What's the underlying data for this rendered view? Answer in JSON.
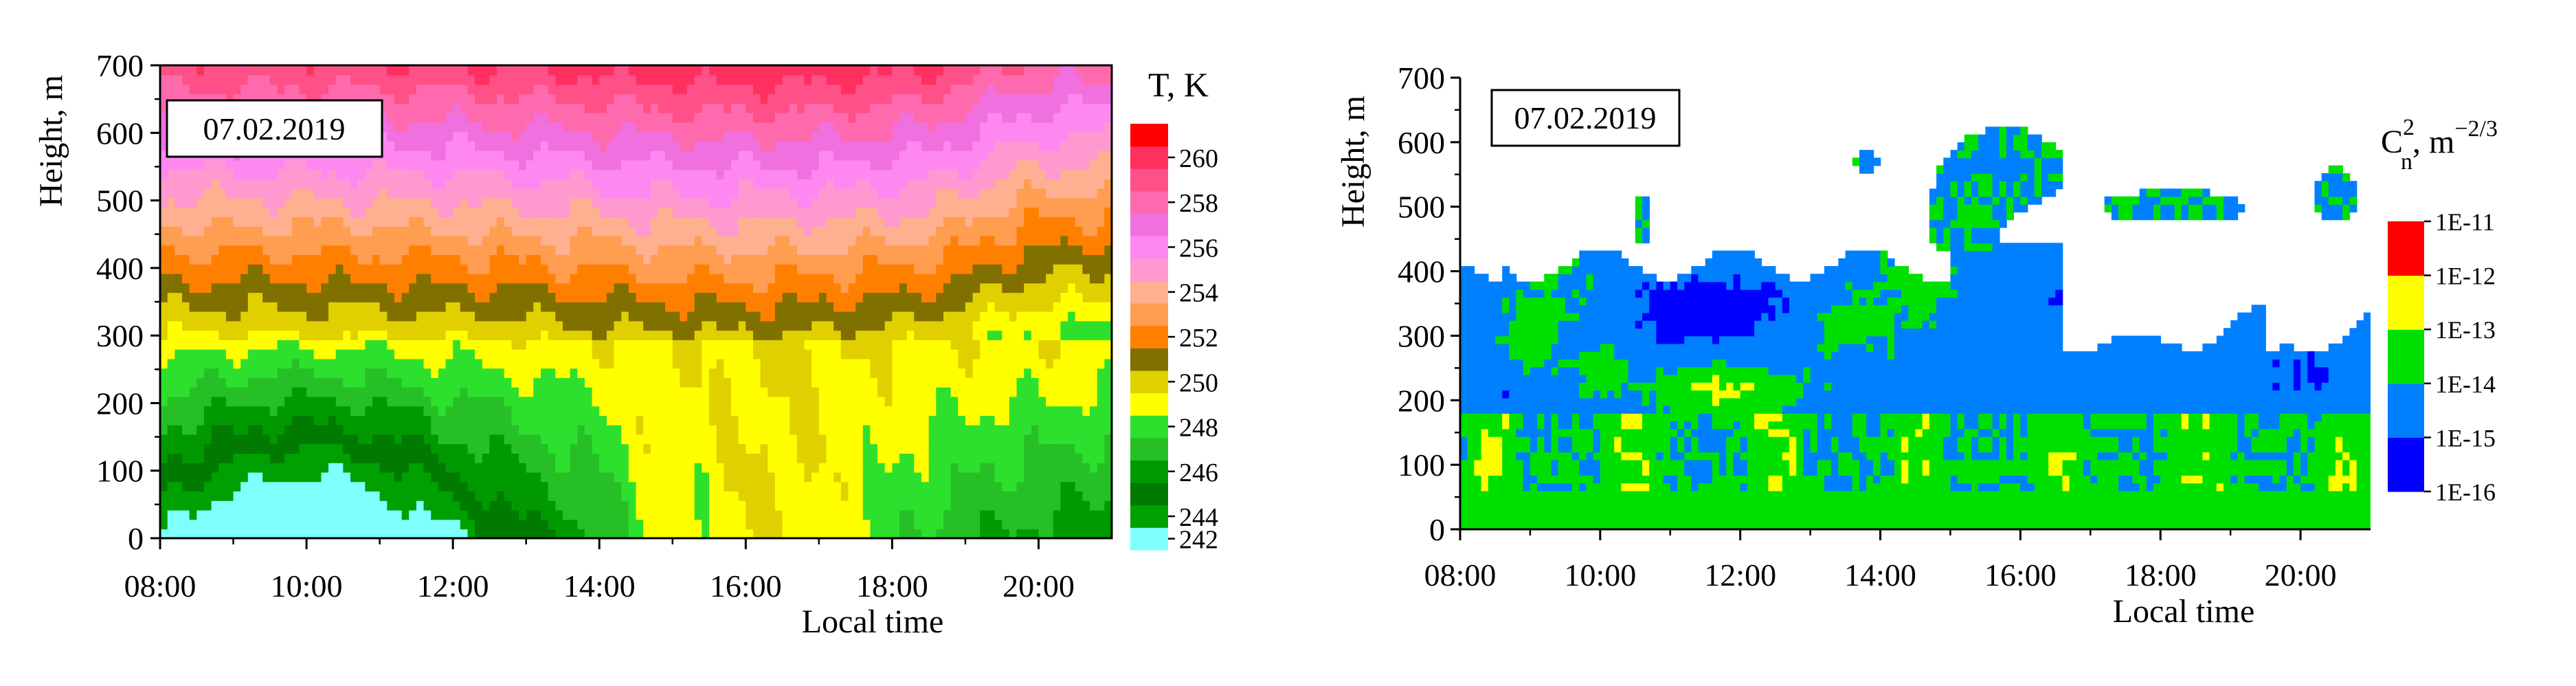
{
  "chart_data": [
    {
      "type": "heatmap",
      "date_label": "07.02.2019",
      "xlabel": "Local time",
      "ylabel": "Height, m",
      "colorbar_title": "T, K",
      "x_ticks": [
        "08:00",
        "10:00",
        "12:00",
        "14:00",
        "16:00",
        "18:00",
        "20:00"
      ],
      "x_tick_hours": [
        8,
        10,
        12,
        14,
        16,
        18,
        20
      ],
      "xlim_hours": [
        8,
        21
      ],
      "y_ticks": [
        0,
        100,
        200,
        300,
        400,
        500,
        600,
        700
      ],
      "ylim": [
        0,
        700
      ],
      "levels": [
        242,
        244,
        245,
        246,
        247,
        248,
        249,
        250,
        251,
        252,
        253,
        254,
        255,
        256,
        257,
        258,
        259,
        260,
        261
      ],
      "level_colors": [
        "#80FFFF",
        "#00A000",
        "#007A00",
        "#009A00",
        "#26C026",
        "#2EE02E",
        "#FFFF00",
        "#E0D000",
        "#807000",
        "#FF8000",
        "#FF9D50",
        "#FFB090",
        "#FF99D0",
        "#FF88F0",
        "#F070E0",
        "#FF6AAE",
        "#FF5088",
        "#FF3060",
        "#FF0000"
      ],
      "colorbar_labels": [
        "242",
        "244",
        "246",
        "248",
        "250",
        "252",
        "254",
        "256",
        "258",
        "260"
      ]
    },
    {
      "type": "heatmap",
      "date_label": "07.02.2019",
      "xlabel": "Local time",
      "ylabel": "Height, m",
      "colorbar_title_base": "C",
      "colorbar_title_sub": "n",
      "colorbar_title_sup": "2",
      "colorbar_title_rest": ", m",
      "colorbar_title_rest_sup": "−2/3",
      "x_ticks": [
        "08:00",
        "10:00",
        "12:00",
        "14:00",
        "16:00",
        "18:00",
        "20:00"
      ],
      "x_tick_hours": [
        8,
        10,
        12,
        14,
        16,
        18,
        20
      ],
      "xlim_hours": [
        8,
        21
      ],
      "y_ticks": [
        0,
        100,
        200,
        300,
        400,
        500,
        600,
        700
      ],
      "ylim": [
        0,
        700
      ],
      "classes": [
        "1E-16",
        "1E-15",
        "1E-14",
        "1E-13",
        "1E-12",
        "1E-11"
      ],
      "class_colors": [
        "#0000FF",
        "#0080FF",
        "#00E000",
        "#FFFF00",
        "#FF0000"
      ]
    }
  ]
}
